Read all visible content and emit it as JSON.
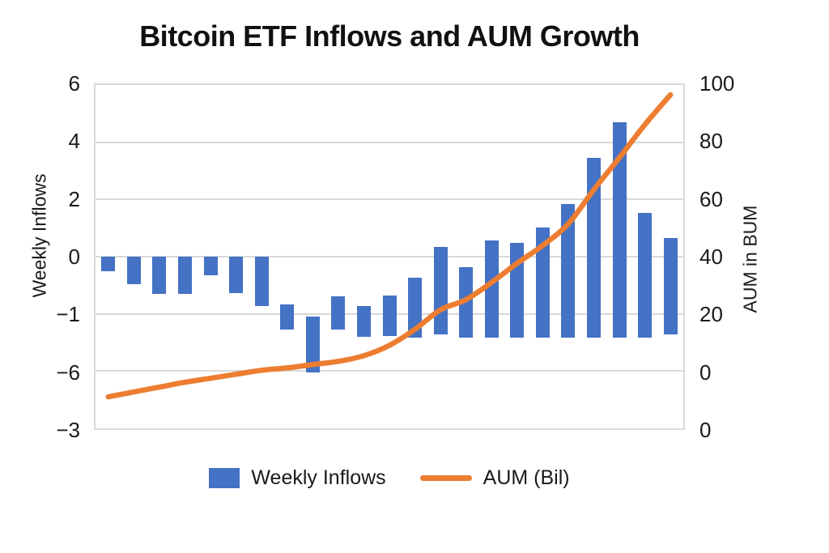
{
  "title": "Bitcoin ETF Inflows and AUM Growth",
  "colors": {
    "bar": "#4472C4",
    "line": "#ED7D31",
    "grid": "#D9D9D9",
    "text": "#1A1A1A"
  },
  "left_axis": {
    "label": "Weekly Inflows",
    "tick_labels": [
      "6",
      "4",
      "2",
      "0",
      "−1",
      "−6",
      "−3"
    ]
  },
  "right_axis": {
    "label": "AUM in BUM",
    "tick_labels": [
      "100",
      "80",
      "60",
      "40",
      "20",
      "0",
      "0"
    ]
  },
  "legend": {
    "items": [
      {
        "label": "Weekly Inflows",
        "swatch": "bar"
      },
      {
        "label": "AUM (Bil)",
        "swatch": "line"
      }
    ]
  },
  "chart_data": {
    "type": "combo",
    "grid": "horizontal-only",
    "legend_position": "bottom-center",
    "x_tick_labels_visible": false,
    "left_axis_plot_range": [
      6,
      -6
    ],
    "right_axis_plot_range": [
      100,
      -20
    ],
    "series": [
      {
        "name": "Weekly Inflows",
        "type": "bar",
        "axis": "left",
        "bar_spans": [
          [
            0,
            -0.51
          ],
          [
            0,
            -0.96
          ],
          [
            0,
            -1.3
          ],
          [
            0,
            -1.3
          ],
          [
            0,
            -0.65
          ],
          [
            0,
            -1.27
          ],
          [
            0,
            -1.72
          ],
          [
            -1.68,
            -2.54
          ],
          [
            -2.09,
            -4.06
          ],
          [
            -1.4,
            -2.54
          ],
          [
            -1.72,
            -2.81
          ],
          [
            -1.37,
            -2.78
          ],
          [
            -0.73,
            -2.82
          ],
          [
            0.34,
            -2.73
          ],
          [
            -0.37,
            -2.82
          ],
          [
            0.58,
            -2.82
          ],
          [
            0.48,
            -2.82
          ],
          [
            1.01,
            -2.82
          ],
          [
            1.83,
            -2.82
          ],
          [
            3.44,
            -2.82
          ],
          [
            4.7,
            -2.82
          ],
          [
            1.52,
            -2.82
          ],
          [
            0.65,
            -2.73
          ]
        ]
      },
      {
        "name": "AUM (Bil)",
        "type": "line",
        "axis": "right",
        "values": [
          -9.0,
          -7.3,
          -5.6,
          -3.9,
          -2.5,
          -1.1,
          0.3,
          1.1,
          2.3,
          3.4,
          5.4,
          9.0,
          14.6,
          21.4,
          25.0,
          31.0,
          37.7,
          43.9,
          51.5,
          63.4,
          74.6,
          86.2,
          96.6
        ]
      }
    ]
  }
}
